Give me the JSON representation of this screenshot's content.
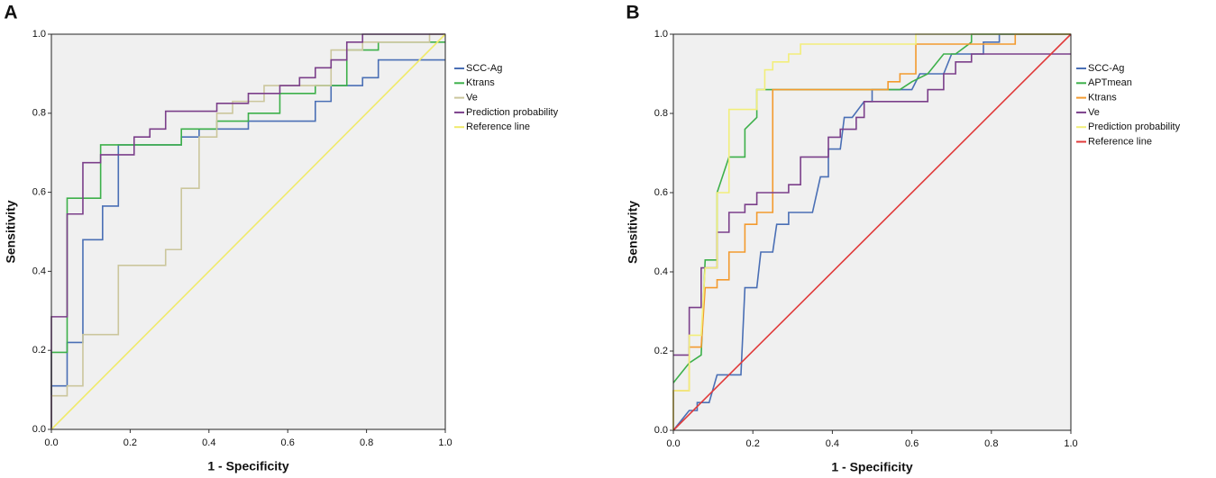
{
  "chart_data": [
    {
      "type": "line",
      "panel_label": "A",
      "x_label": "1 - Specificity",
      "y_label": "Sensitivity",
      "xlim": [
        0,
        1
      ],
      "ylim": [
        0,
        1
      ],
      "xticks": [
        {
          "value": 0,
          "label": "0.0"
        },
        0.2,
        0.4,
        0.6,
        0.8,
        {
          "value": 1,
          "label": "1.0"
        }
      ],
      "yticks": [
        {
          "value": 0,
          "label": "0.0"
        },
        0.2,
        0.4,
        0.6,
        0.8,
        {
          "value": 1,
          "label": "1.0"
        }
      ],
      "series": [
        {
          "name": "SCC-Ag",
          "color": "#4a6fb5",
          "x": [
            0,
            0,
            0.04,
            0.04,
            0.08,
            0.08,
            0.13,
            0.13,
            0.17,
            0.17,
            0.33,
            0.33,
            0.375,
            0.375,
            0.5,
            0.5,
            0.67,
            0.67,
            0.71,
            0.71,
            0.79,
            0.79,
            0.83,
            0.83,
            1
          ],
          "values": [
            0,
            0.11,
            0.11,
            0.22,
            0.22,
            0.48,
            0.48,
            0.565,
            0.565,
            0.72,
            0.72,
            0.74,
            0.74,
            0.76,
            0.76,
            0.78,
            0.78,
            0.83,
            0.83,
            0.87,
            0.87,
            0.89,
            0.89,
            0.935,
            0.935
          ]
        },
        {
          "name": "Ktrans",
          "color": "#3db04a",
          "x": [
            0,
            0,
            0.04,
            0.04,
            0.125,
            0.125,
            0.33,
            0.33,
            0.42,
            0.42,
            0.5,
            0.5,
            0.58,
            0.58,
            0.67,
            0.67,
            0.75,
            0.75,
            0.83,
            0.83,
            1
          ],
          "values": [
            0,
            0.195,
            0.195,
            0.585,
            0.585,
            0.72,
            0.72,
            0.76,
            0.76,
            0.78,
            0.78,
            0.8,
            0.8,
            0.85,
            0.85,
            0.87,
            0.87,
            0.96,
            0.96,
            0.98,
            0.98
          ]
        },
        {
          "name": "Ve",
          "color": "#cbc69c",
          "x": [
            0,
            0,
            0.04,
            0.04,
            0.08,
            0.08,
            0.17,
            0.17,
            0.29,
            0.29,
            0.33,
            0.33,
            0.375,
            0.375,
            0.42,
            0.42,
            0.46,
            0.46,
            0.54,
            0.54,
            0.71,
            0.71,
            0.79,
            0.79,
            0.96,
            0.96,
            1
          ],
          "values": [
            0,
            0.085,
            0.085,
            0.11,
            0.11,
            0.24,
            0.24,
            0.415,
            0.415,
            0.455,
            0.455,
            0.61,
            0.61,
            0.74,
            0.74,
            0.8,
            0.8,
            0.83,
            0.83,
            0.87,
            0.87,
            0.96,
            0.96,
            0.98,
            0.98,
            1,
            1
          ]
        },
        {
          "name": "Prediction probability",
          "color": "#7b3f8a",
          "x": [
            0,
            0,
            0.04,
            0.04,
            0.08,
            0.08,
            0.125,
            0.125,
            0.21,
            0.21,
            0.25,
            0.25,
            0.29,
            0.29,
            0.42,
            0.42,
            0.5,
            0.5,
            0.58,
            0.58,
            0.63,
            0.63,
            0.67,
            0.67,
            0.71,
            0.71,
            0.75,
            0.75,
            0.79,
            0.79,
            1
          ],
          "values": [
            0,
            0.285,
            0.285,
            0.545,
            0.545,
            0.675,
            0.675,
            0.695,
            0.695,
            0.74,
            0.74,
            0.76,
            0.76,
            0.805,
            0.805,
            0.825,
            0.825,
            0.85,
            0.85,
            0.87,
            0.87,
            0.89,
            0.89,
            0.915,
            0.915,
            0.935,
            0.935,
            0.98,
            0.98,
            1,
            1
          ]
        },
        {
          "name": "Reference line",
          "color": "#f0ea6a",
          "x": [
            0,
            1
          ],
          "values": [
            0,
            1
          ]
        }
      ]
    },
    {
      "type": "line",
      "panel_label": "B",
      "x_label": "1 - Specificity",
      "y_label": "Sensitivity",
      "xlim": [
        0,
        1
      ],
      "ylim": [
        0,
        1
      ],
      "xticks": [
        {
          "value": 0,
          "label": "0.0"
        },
        0.2,
        0.4,
        0.6,
        0.8,
        {
          "value": 1,
          "label": "1.0"
        }
      ],
      "yticks": [
        {
          "value": 0,
          "label": "0.0"
        },
        0.2,
        0.4,
        0.6,
        0.8,
        {
          "value": 1,
          "label": "1.0"
        }
      ],
      "series": [
        {
          "name": "SCC-Ag",
          "color": "#4a6fb5",
          "x": [
            0,
            0.04,
            0.06,
            0.06,
            0.09,
            0.11,
            0.17,
            0.18,
            0.21,
            0.22,
            0.25,
            0.26,
            0.29,
            0.29,
            0.35,
            0.37,
            0.39,
            0.39,
            0.42,
            0.43,
            0.45,
            0.48,
            0.5,
            0.5,
            0.6,
            0.62,
            0.68,
            0.7,
            0.78,
            0.78,
            0.82,
            0.82,
            1
          ],
          "values": [
            0,
            0.05,
            0.05,
            0.07,
            0.07,
            0.14,
            0.14,
            0.36,
            0.36,
            0.45,
            0.45,
            0.52,
            0.52,
            0.55,
            0.55,
            0.64,
            0.64,
            0.71,
            0.71,
            0.79,
            0.79,
            0.83,
            0.83,
            0.86,
            0.86,
            0.9,
            0.9,
            0.95,
            0.95,
            0.98,
            0.98,
            1,
            1
          ]
        },
        {
          "name": "APTmean",
          "color": "#3db04a",
          "x": [
            0,
            0.04,
            0.07,
            0.08,
            0.11,
            0.11,
            0.14,
            0.18,
            0.18,
            0.21,
            0.21,
            0.57,
            0.6,
            0.64,
            0.68,
            0.71,
            0.75,
            0.75,
            1
          ],
          "values": [
            0.12,
            0.17,
            0.19,
            0.43,
            0.43,
            0.6,
            0.69,
            0.69,
            0.76,
            0.79,
            0.86,
            0.86,
            0.88,
            0.9,
            0.95,
            0.95,
            0.98,
            1,
            1
          ]
        },
        {
          "name": "Ktrans",
          "color": "#f39a2e",
          "x": [
            0,
            0,
            0.04,
            0.04,
            0.07,
            0.08,
            0.11,
            0.11,
            0.14,
            0.14,
            0.18,
            0.18,
            0.21,
            0.21,
            0.25,
            0.25,
            0.54,
            0.54,
            0.57,
            0.57,
            0.61,
            0.61,
            0.86,
            0.86,
            1
          ],
          "values": [
            0,
            0.1,
            0.1,
            0.21,
            0.21,
            0.36,
            0.36,
            0.38,
            0.38,
            0.45,
            0.45,
            0.52,
            0.52,
            0.55,
            0.55,
            0.86,
            0.86,
            0.88,
            0.88,
            0.9,
            0.9,
            0.975,
            0.975,
            1,
            1
          ]
        },
        {
          "name": "Ve",
          "color": "#7b3f8a",
          "x": [
            0,
            0.04,
            0.04,
            0.07,
            0.07,
            0.11,
            0.11,
            0.14,
            0.14,
            0.18,
            0.18,
            0.21,
            0.21,
            0.29,
            0.29,
            0.32,
            0.32,
            0.39,
            0.39,
            0.42,
            0.42,
            0.46,
            0.46,
            0.48,
            0.48,
            0.64,
            0.64,
            0.68,
            0.68,
            0.71,
            0.71,
            0.75,
            0.75,
            1
          ],
          "values": [
            0.19,
            0.19,
            0.31,
            0.31,
            0.41,
            0.41,
            0.5,
            0.5,
            0.55,
            0.55,
            0.57,
            0.57,
            0.6,
            0.6,
            0.62,
            0.62,
            0.69,
            0.69,
            0.74,
            0.74,
            0.76,
            0.76,
            0.79,
            0.79,
            0.83,
            0.83,
            0.86,
            0.86,
            0.9,
            0.9,
            0.93,
            0.93,
            0.95,
            0.95
          ]
        },
        {
          "name": "Prediction probability",
          "color": "#f2ee7a",
          "x": [
            0,
            0,
            0.04,
            0.04,
            0.07,
            0.08,
            0.11,
            0.11,
            0.14,
            0.14,
            0.21,
            0.21,
            0.23,
            0.23,
            0.25,
            0.25,
            0.29,
            0.29,
            0.32,
            0.32,
            0.61,
            0.61,
            1
          ],
          "values": [
            0,
            0.1,
            0.1,
            0.24,
            0.24,
            0.41,
            0.41,
            0.6,
            0.6,
            0.81,
            0.81,
            0.86,
            0.86,
            0.91,
            0.91,
            0.93,
            0.93,
            0.95,
            0.95,
            0.975,
            0.975,
            1,
            1
          ]
        },
        {
          "name": "Reference line",
          "color": "#e03a3a",
          "x": [
            0,
            1
          ],
          "values": [
            0,
            1
          ]
        }
      ]
    }
  ]
}
